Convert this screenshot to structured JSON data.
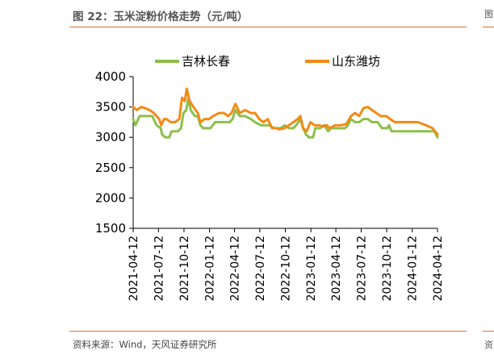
{
  "header": {
    "title": "图 22：玉米淀粉价格走势（元/吨）"
  },
  "footer": {
    "source": "资料来源：Wind，天风证券研究所"
  },
  "edge": {
    "top_glyph": "图",
    "bottom_glyph": "资"
  },
  "colors": {
    "accent": "#e8702a",
    "series_jilin": "#8dbf4a",
    "series_shandong": "#f28a16"
  },
  "chart_data": {
    "type": "line",
    "title": "",
    "xlabel": "",
    "ylabel": "",
    "ylim": [
      1500,
      4000
    ],
    "yticks": [
      1500,
      2000,
      2500,
      3000,
      3500,
      4000
    ],
    "xlim": [
      "2021-04-12",
      "2024-04-12"
    ],
    "xtick_labels": [
      "2021-04-12",
      "2021-07-12",
      "2021-10-12",
      "2022-01-12",
      "2022-04-12",
      "2022-07-12",
      "2022-10-12",
      "2023-01-12",
      "2023-04-12",
      "2023-07-12",
      "2023-10-12",
      "2024-01-12",
      "2024-04-12"
    ],
    "legend_position": "top",
    "grid": false,
    "series": [
      {
        "name": "吉林长春",
        "color": "#8dbf4a",
        "points": [
          [
            "2021-04-12",
            3300
          ],
          [
            "2021-04-20",
            3200
          ],
          [
            "2021-05-05",
            3350
          ],
          [
            "2021-06-01",
            3350
          ],
          [
            "2021-06-20",
            3350
          ],
          [
            "2021-07-05",
            3200
          ],
          [
            "2021-07-20",
            3150
          ],
          [
            "2021-07-25",
            3050
          ],
          [
            "2021-08-05",
            3000
          ],
          [
            "2021-08-20",
            3000
          ],
          [
            "2021-08-28",
            3100
          ],
          [
            "2021-09-20",
            3100
          ],
          [
            "2021-10-01",
            3150
          ],
          [
            "2021-10-10",
            3400
          ],
          [
            "2021-10-20",
            3450
          ],
          [
            "2021-10-28",
            3650
          ],
          [
            "2021-11-05",
            3450
          ],
          [
            "2021-11-20",
            3350
          ],
          [
            "2021-12-01",
            3350
          ],
          [
            "2021-12-10",
            3200
          ],
          [
            "2021-12-20",
            3150
          ],
          [
            "2022-01-15",
            3150
          ],
          [
            "2022-02-01",
            3250
          ],
          [
            "2022-03-10",
            3250
          ],
          [
            "2022-03-25",
            3250
          ],
          [
            "2022-04-05",
            3300
          ],
          [
            "2022-04-15",
            3450
          ],
          [
            "2022-05-01",
            3350
          ],
          [
            "2022-05-20",
            3350
          ],
          [
            "2022-06-10",
            3300
          ],
          [
            "2022-06-25",
            3250
          ],
          [
            "2022-07-15",
            3200
          ],
          [
            "2022-08-15",
            3200
          ],
          [
            "2022-09-01",
            3150
          ],
          [
            "2022-09-25",
            3150
          ],
          [
            "2022-10-10",
            3200
          ],
          [
            "2022-10-25",
            3150
          ],
          [
            "2022-11-10",
            3150
          ],
          [
            "2022-11-20",
            3200
          ],
          [
            "2022-12-05",
            3300
          ],
          [
            "2022-12-15",
            3150
          ],
          [
            "2022-12-25",
            3050
          ],
          [
            "2023-01-05",
            3000
          ],
          [
            "2023-01-20",
            3000
          ],
          [
            "2023-01-28",
            3150
          ],
          [
            "2023-02-15",
            3150
          ],
          [
            "2023-03-01",
            3200
          ],
          [
            "2023-03-15",
            3100
          ],
          [
            "2023-03-25",
            3150
          ],
          [
            "2023-04-15",
            3150
          ],
          [
            "2023-05-15",
            3150
          ],
          [
            "2023-05-25",
            3200
          ],
          [
            "2023-06-05",
            3300
          ],
          [
            "2023-06-20",
            3250
          ],
          [
            "2023-07-05",
            3250
          ],
          [
            "2023-07-20",
            3300
          ],
          [
            "2023-08-05",
            3300
          ],
          [
            "2023-08-20",
            3250
          ],
          [
            "2023-09-10",
            3250
          ],
          [
            "2023-09-25",
            3150
          ],
          [
            "2023-10-15",
            3150
          ],
          [
            "2023-10-20",
            3200
          ],
          [
            "2023-10-30",
            3100
          ],
          [
            "2023-12-01",
            3100
          ],
          [
            "2024-01-15",
            3100
          ],
          [
            "2024-02-15",
            3100
          ],
          [
            "2024-03-15",
            3100
          ],
          [
            "2024-04-01",
            3100
          ],
          [
            "2024-04-12",
            3000
          ]
        ]
      },
      {
        "name": "山东潍坊",
        "color": "#f28a16",
        "points": [
          [
            "2021-04-12",
            3500
          ],
          [
            "2021-04-25",
            3450
          ],
          [
            "2021-05-10",
            3500
          ],
          [
            "2021-05-25",
            3480
          ],
          [
            "2021-06-10",
            3450
          ],
          [
            "2021-06-25",
            3400
          ],
          [
            "2021-07-05",
            3350
          ],
          [
            "2021-07-15",
            3300
          ],
          [
            "2021-07-22",
            3200
          ],
          [
            "2021-08-01",
            3300
          ],
          [
            "2021-08-10",
            3300
          ],
          [
            "2021-08-25",
            3250
          ],
          [
            "2021-09-10",
            3250
          ],
          [
            "2021-09-25",
            3300
          ],
          [
            "2021-10-05",
            3650
          ],
          [
            "2021-10-15",
            3600
          ],
          [
            "2021-10-22",
            3800
          ],
          [
            "2021-11-01",
            3600
          ],
          [
            "2021-11-15",
            3500
          ],
          [
            "2021-12-01",
            3400
          ],
          [
            "2021-12-10",
            3250
          ],
          [
            "2021-12-25",
            3300
          ],
          [
            "2022-01-10",
            3300
          ],
          [
            "2022-01-25",
            3350
          ],
          [
            "2022-02-15",
            3400
          ],
          [
            "2022-03-05",
            3400
          ],
          [
            "2022-03-20",
            3350
          ],
          [
            "2022-04-01",
            3400
          ],
          [
            "2022-04-15",
            3550
          ],
          [
            "2022-05-01",
            3400
          ],
          [
            "2022-05-20",
            3450
          ],
          [
            "2022-06-10",
            3400
          ],
          [
            "2022-06-25",
            3400
          ],
          [
            "2022-07-10",
            3300
          ],
          [
            "2022-07-25",
            3250
          ],
          [
            "2022-08-10",
            3300
          ],
          [
            "2022-08-25",
            3150
          ],
          [
            "2022-09-10",
            3150
          ],
          [
            "2022-09-20",
            3130
          ],
          [
            "2022-10-10",
            3150
          ],
          [
            "2022-10-25",
            3200
          ],
          [
            "2022-11-10",
            3250
          ],
          [
            "2022-11-25",
            3300
          ],
          [
            "2022-12-05",
            3350
          ],
          [
            "2022-12-15",
            3150
          ],
          [
            "2022-12-28",
            3100
          ],
          [
            "2023-01-10",
            3250
          ],
          [
            "2023-01-25",
            3200
          ],
          [
            "2023-02-10",
            3200
          ],
          [
            "2023-02-25",
            3180
          ],
          [
            "2023-03-10",
            3200
          ],
          [
            "2023-03-20",
            3150
          ],
          [
            "2023-04-10",
            3200
          ],
          [
            "2023-05-01",
            3200
          ],
          [
            "2023-05-20",
            3220
          ],
          [
            "2023-06-05",
            3350
          ],
          [
            "2023-06-20",
            3400
          ],
          [
            "2023-07-05",
            3350
          ],
          [
            "2023-07-20",
            3480
          ],
          [
            "2023-08-05",
            3500
          ],
          [
            "2023-08-20",
            3450
          ],
          [
            "2023-09-05",
            3400
          ],
          [
            "2023-09-20",
            3350
          ],
          [
            "2023-10-10",
            3350
          ],
          [
            "2023-10-25",
            3300
          ],
          [
            "2023-11-10",
            3250
          ],
          [
            "2023-12-01",
            3250
          ],
          [
            "2024-01-01",
            3250
          ],
          [
            "2024-02-01",
            3250
          ],
          [
            "2024-03-01",
            3200
          ],
          [
            "2024-03-25",
            3150
          ],
          [
            "2024-04-12",
            3050
          ]
        ]
      }
    ]
  }
}
